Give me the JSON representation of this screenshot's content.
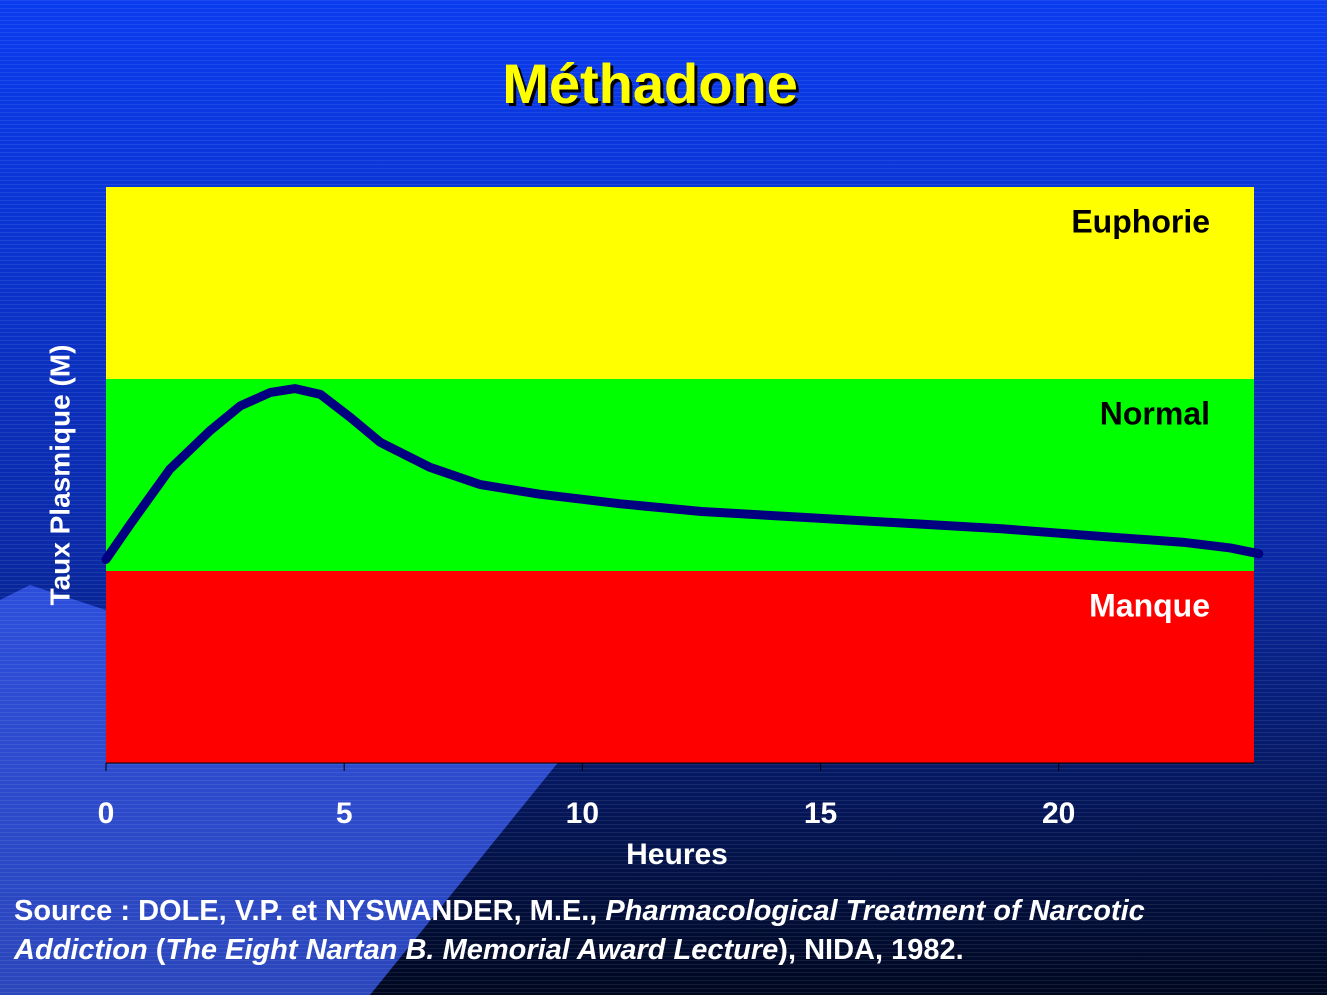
{
  "chart_data": {
    "type": "line",
    "title": "Méthadone",
    "x_label": "Heures",
    "y_label": "Taux Plasmique (M)",
    "xlim": [
      0,
      24.1
    ],
    "xticks": [
      0,
      5,
      10,
      15,
      20
    ],
    "ylim": [
      0,
      3
    ],
    "zones": [
      {
        "label": "Euphorie",
        "color": "#ffff00",
        "text_color": "#000000",
        "from": 2,
        "to": 3
      },
      {
        "label": "Normal",
        "color": "#00ff00",
        "text_color": "#000000",
        "from": 1,
        "to": 2
      },
      {
        "label": "Manque",
        "color": "#ff0000",
        "text_color": "#ffffff",
        "from": 0,
        "to": 1
      }
    ],
    "color": "#000080",
    "x": [
      0,
      0.5,
      1.34,
      2.18,
      2.82,
      3.45,
      3.97,
      4.5,
      5.13,
      5.76,
      6.8,
      7.86,
      9.1,
      10.8,
      12.5,
      14.6,
      16.7,
      18.8,
      20.9,
      22.6,
      23.6,
      24.2
    ],
    "values": [
      1.06,
      1.24,
      1.53,
      1.73,
      1.86,
      1.93,
      1.95,
      1.92,
      1.8,
      1.67,
      1.54,
      1.45,
      1.4,
      1.35,
      1.31,
      1.28,
      1.25,
      1.22,
      1.18,
      1.15,
      1.12,
      1.09
    ]
  },
  "source": [
    {
      "text": "Source : DOLE, V.P. et NYSWANDER, M.E., ",
      "italic": false
    },
    {
      "text": "Pharmacological Treatment of Narcotic Addiction",
      "italic": true
    },
    {
      "text": " (",
      "italic": false
    },
    {
      "text": "The Eight Nartan B. Memorial Award Lecture",
      "italic": true
    },
    {
      "text": "), NIDA, 1982.",
      "italic": false
    }
  ]
}
